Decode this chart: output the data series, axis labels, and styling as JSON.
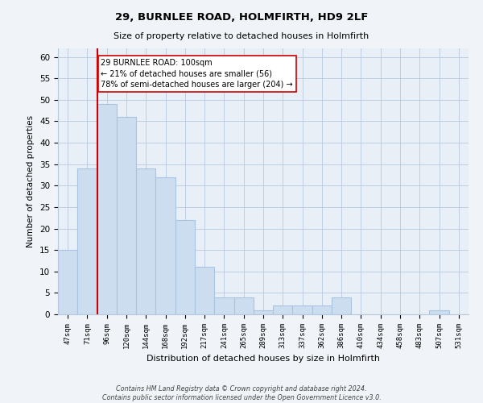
{
  "title": "29, BURNLEE ROAD, HOLMFIRTH, HD9 2LF",
  "subtitle": "Size of property relative to detached houses in Holmfirth",
  "xlabel": "Distribution of detached houses by size in Holmfirth",
  "ylabel": "Number of detached properties",
  "bar_labels": [
    "47sqm",
    "71sqm",
    "96sqm",
    "120sqm",
    "144sqm",
    "168sqm",
    "192sqm",
    "217sqm",
    "241sqm",
    "265sqm",
    "289sqm",
    "313sqm",
    "337sqm",
    "362sqm",
    "386sqm",
    "410sqm",
    "434sqm",
    "458sqm",
    "483sqm",
    "507sqm",
    "531sqm"
  ],
  "bar_values": [
    15,
    34,
    49,
    46,
    34,
    32,
    22,
    11,
    4,
    4,
    1,
    2,
    2,
    2,
    4,
    0,
    0,
    0,
    0,
    1,
    0
  ],
  "bar_color": "#ccddf0",
  "bar_edge_color": "#a8c4e0",
  "vline_x_idx": 2,
  "vline_color": "#cc0000",
  "annotation_text": "29 BURNLEE ROAD: 100sqm\n← 21% of detached houses are smaller (56)\n78% of semi-detached houses are larger (204) →",
  "annotation_box_color": "#ffffff",
  "annotation_box_edge": "#cc0000",
  "ylim": [
    0,
    62
  ],
  "yticks": [
    0,
    5,
    10,
    15,
    20,
    25,
    30,
    35,
    40,
    45,
    50,
    55,
    60
  ],
  "footer_line1": "Contains HM Land Registry data © Crown copyright and database right 2024.",
  "footer_line2": "Contains public sector information licensed under the Open Government Licence v3.0.",
  "background_color": "#f0f4f8",
  "plot_bg_color": "#e8eff7",
  "grid_color": "#b8c8dc"
}
